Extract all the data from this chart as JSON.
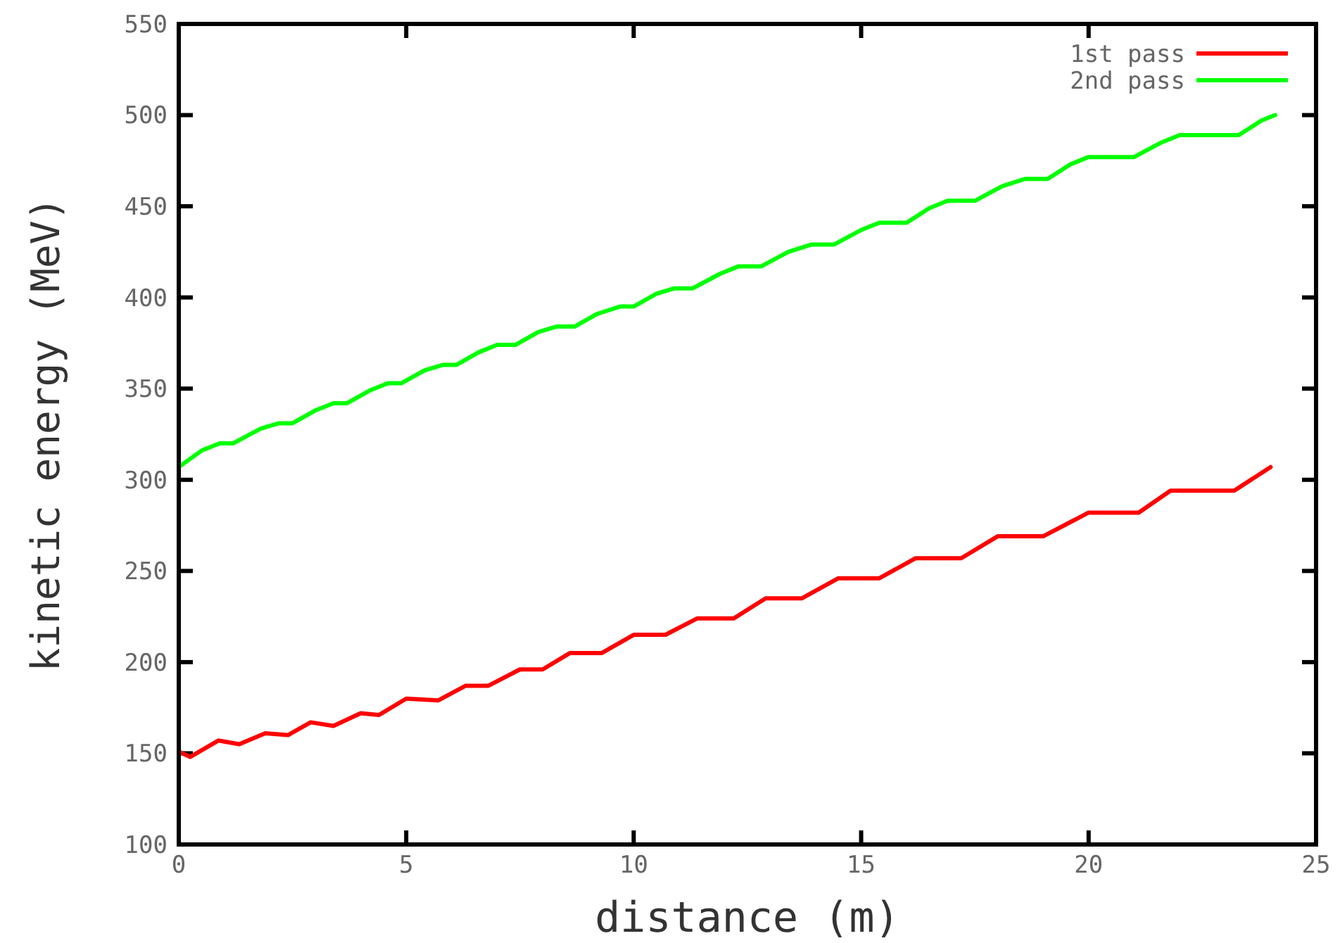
{
  "chart_data": {
    "type": "line",
    "xlabel": "distance (m)",
    "ylabel": "kinetic energy (MeV)",
    "xlim": [
      0,
      25
    ],
    "xticks": [
      0,
      5,
      10,
      15,
      20,
      25
    ],
    "ylim": [
      100,
      550
    ],
    "yticks": [
      100,
      150,
      200,
      250,
      300,
      350,
      400,
      450,
      500,
      550
    ],
    "grid": false,
    "legend": "top right",
    "marker": "none",
    "line_style": "solid",
    "series": [
      {
        "name": "1st pass",
        "color": "#ff0000",
        "x": [
          0,
          0.25,
          0.87,
          1.33,
          1.9,
          2.4,
          2.9,
          3.4,
          4.0,
          4.4,
          5.0,
          5.7,
          6.3,
          6.8,
          7.5,
          8.0,
          8.6,
          9.3,
          10.0,
          10.7,
          11.4,
          12.2,
          12.9,
          13.7,
          14.5,
          15.4,
          16.2,
          17.2,
          18.0,
          19.0,
          20.0,
          21.1,
          21.8,
          23.2,
          24.0
        ],
        "values": [
          151,
          148,
          157,
          155,
          161,
          160,
          167,
          165,
          172,
          171,
          180,
          179,
          187,
          187,
          196,
          196,
          205,
          205,
          215,
          215,
          224,
          224,
          235,
          235,
          246,
          246,
          257,
          257,
          269,
          269,
          282,
          282,
          294,
          294,
          307
        ]
      },
      {
        "name": "2nd pass",
        "color": "#00ff00",
        "x": [
          0,
          0.5,
          0.9,
          1.2,
          1.8,
          2.2,
          2.5,
          3.0,
          3.4,
          3.7,
          4.2,
          4.6,
          4.9,
          5.4,
          5.8,
          6.1,
          6.6,
          7.0,
          7.4,
          7.9,
          8.3,
          8.7,
          9.2,
          9.7,
          10.0,
          10.5,
          10.9,
          11.3,
          11.9,
          12.3,
          12.8,
          13.4,
          13.9,
          14.4,
          15.0,
          15.4,
          16.0,
          16.5,
          16.9,
          17.5,
          18.1,
          18.6,
          19.1,
          19.6,
          20.0,
          21.0,
          21.6,
          22.0,
          23.3,
          23.8,
          24.1
        ],
        "values": [
          307,
          316,
          320,
          320,
          328,
          331,
          331,
          338,
          342,
          342,
          349,
          353,
          353,
          360,
          363,
          363,
          370,
          374,
          374,
          381,
          384,
          384,
          391,
          395,
          395,
          402,
          405,
          405,
          413,
          417,
          417,
          425,
          429,
          429,
          437,
          441,
          441,
          449,
          453,
          453,
          461,
          465,
          465,
          473,
          477,
          477,
          485,
          489,
          489,
          497,
          500
        ]
      }
    ]
  }
}
